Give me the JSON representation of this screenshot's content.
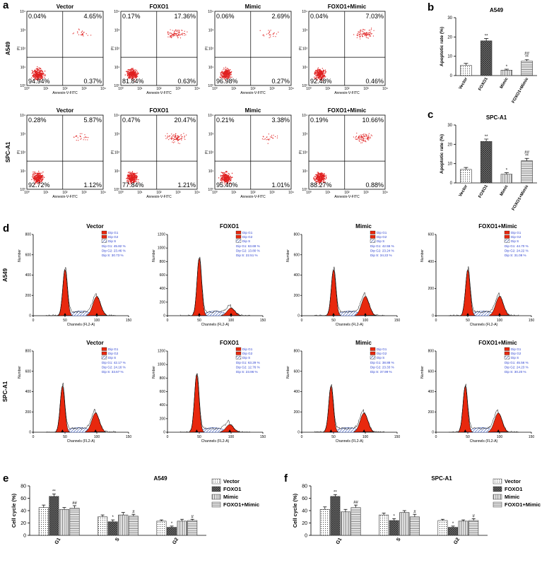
{
  "panel_a": {
    "label": "a",
    "row_labels": [
      "A549",
      "SPC-A1"
    ],
    "column_titles": [
      "Vector",
      "FOXO1",
      "Mimic",
      "FOXO1+Mimic"
    ],
    "x_axis_label": "Annexin-V-FITC",
    "y_axis_label": "PI",
    "ticks": [
      "10⁰",
      "10¹",
      "10²",
      "10³",
      "10⁴"
    ],
    "plots": [
      [
        [
          "0.04%",
          "4.65%",
          "94.94%",
          "0.37%"
        ],
        [
          "0.17%",
          "17.36%",
          "81.84%",
          "0.63%"
        ],
        [
          "0.06%",
          "2.69%",
          "96.98%",
          "0.27%"
        ],
        [
          "0.04%",
          "7.03%",
          "92.48%",
          "0.46%"
        ]
      ],
      [
        [
          "0.28%",
          "5.87%",
          "92.72%",
          "1.12%"
        ],
        [
          "0.47%",
          "20.47%",
          "77.84%",
          "1.21%"
        ],
        [
          "0.21%",
          "3.38%",
          "95.40%",
          "1.01%"
        ],
        [
          "0.19%",
          "10.66%",
          "88.27%",
          "0.88%"
        ]
      ]
    ]
  },
  "panel_b": {
    "label": "b",
    "type": "bar",
    "title": "A549",
    "y_label": "Apoptotic rate (%)",
    "categories": [
      "Vector",
      "FOXO1",
      "Mimic",
      "FOXO1+Mimic"
    ],
    "values": [
      5.3,
      18,
      2.8,
      7.5
    ],
    "errors": [
      1,
      1.2,
      0.5,
      0.8
    ],
    "ylim": [
      0,
      30
    ],
    "yticks": [
      0,
      10,
      20,
      30
    ],
    "sig_vs_vector": [
      null,
      "**",
      "*",
      "**"
    ],
    "sig_vs_foxo1": [
      null,
      null,
      null,
      "##"
    ]
  },
  "panel_c": {
    "label": "c",
    "type": "bar",
    "title": "SPC-A1",
    "y_label": "Apoptotic rate (%)",
    "categories": [
      "Vector",
      "FOXO1",
      "Mimic",
      "FOXO1+Mimic"
    ],
    "values": [
      7,
      21.5,
      4.5,
      11.5
    ],
    "errors": [
      1,
      1.2,
      0.8,
      1.2
    ],
    "ylim": [
      0,
      30
    ],
    "yticks": [
      0,
      10,
      20,
      30
    ],
    "sig_vs_vector": [
      null,
      "**",
      "*",
      "**"
    ],
    "sig_vs_foxo1": [
      null,
      null,
      null,
      "##"
    ]
  },
  "panel_d": {
    "label": "d",
    "row_labels": [
      "A549",
      "SPC-A1"
    ],
    "column_titles": [
      "Vector",
      "FOXO1",
      "Mimic",
      "FOXO1+Mimic"
    ],
    "x_axis_label": "Channels (FL2-A)",
    "y_axis_label": "Number",
    "xlim": [
      0,
      150
    ],
    "xticks": [
      0,
      50,
      100,
      150
    ],
    "legend": [
      "Dip G1",
      "Dip G2",
      "Dip S"
    ],
    "plots": [
      [
        {
          "yticks": [
            0,
            200,
            400,
            600,
            800
          ],
          "stats": [
            "Dip G1: 45.82 %",
            "Dip G2: 23.46 %",
            "Dip S: 30.73 %"
          ]
        },
        {
          "yticks": [
            0,
            200,
            400,
            600,
            800,
            1000,
            1200
          ],
          "stats": [
            "Dip G1: 63.69 %",
            "Dip G2: 13.80 %",
            "Dip S: 22.51 %"
          ]
        },
        {
          "yticks": [
            0,
            200,
            400,
            600,
            800
          ],
          "stats": [
            "Dip G1: 42.55 %",
            "Dip G2: 23.24 %",
            "Dip S: 34.22 %"
          ]
        },
        {
          "yticks": [
            0,
            200,
            400,
            600
          ],
          "stats": [
            "Dip G1: 44.70 %",
            "Dip G2: 24.22 %",
            "Dip S: 31.08 %"
          ]
        }
      ],
      [
        {
          "yticks": [
            0,
            200,
            400,
            600,
            800
          ],
          "stats": [
            "Dip G1: 42.17 %",
            "Dip G2: 24.16 %",
            "Dip S: 33.67 %"
          ]
        },
        {
          "yticks": [
            0,
            200,
            400,
            600,
            800,
            1000,
            1200
          ],
          "stats": [
            "Dip G1: 63.29 %",
            "Dip G2: 12.76 %",
            "Dip S: 23.96 %"
          ]
        },
        {
          "yticks": [
            0,
            200,
            400,
            600,
            800
          ],
          "stats": [
            "Dip G1: 38.88 %",
            "Dip G2: 23.33 %",
            "Dip S: 37.99 %"
          ]
        },
        {
          "yticks": [
            0,
            200,
            400,
            600,
            800
          ],
          "stats": [
            "Dip G1: 45.56 %",
            "Dip G2: 24.23 %",
            "Dip S: 30.20 %"
          ]
        }
      ]
    ]
  },
  "panel_e": {
    "label": "e",
    "type": "grouped_bar",
    "title": "A549",
    "y_label": "Cell cycle (%)",
    "categories": [
      "G1",
      "S",
      "G2"
    ],
    "ylim": [
      0,
      80
    ],
    "yticks": [
      0,
      20,
      40,
      60,
      80
    ],
    "series": [
      {
        "name": "Vector",
        "pattern": "dots",
        "values": [
          45,
          30,
          23
        ],
        "errors": [
          4,
          3,
          2
        ],
        "sig": [
          null,
          null,
          null
        ]
      },
      {
        "name": "FOXO1",
        "pattern": "crosshatch",
        "values": [
          63,
          22,
          13
        ],
        "errors": [
          4,
          3,
          2
        ],
        "sig": [
          "**",
          "*",
          "*"
        ]
      },
      {
        "name": "Mimic",
        "pattern": "vlines",
        "values": [
          42,
          33,
          23
        ],
        "errors": [
          3,
          4,
          3
        ],
        "sig": [
          null,
          null,
          null
        ]
      },
      {
        "name": "FOXO1+Mimic",
        "pattern": "hlines",
        "values": [
          44,
          31,
          24
        ],
        "errors": [
          4,
          3,
          2
        ],
        "sig": [
          "##",
          "#",
          "#"
        ]
      }
    ]
  },
  "panel_f": {
    "label": "f",
    "type": "grouped_bar",
    "title": "SPC-A1",
    "y_label": "Cell cycle (%)",
    "categories": [
      "G1",
      "S",
      "G2"
    ],
    "ylim": [
      0,
      80
    ],
    "yticks": [
      0,
      20,
      40,
      60,
      80
    ],
    "series": [
      {
        "name": "Vector",
        "pattern": "dots",
        "values": [
          42,
          33,
          24
        ],
        "errors": [
          4,
          3,
          2
        ],
        "sig": [
          null,
          null,
          null
        ]
      },
      {
        "name": "FOXO1",
        "pattern": "crosshatch",
        "values": [
          63,
          24,
          13
        ],
        "errors": [
          3,
          3,
          2
        ],
        "sig": [
          "**",
          "*",
          "*"
        ]
      },
      {
        "name": "Mimic",
        "pattern": "vlines",
        "values": [
          38,
          37,
          23
        ],
        "errors": [
          4,
          3,
          2
        ],
        "sig": [
          null,
          null,
          null
        ]
      },
      {
        "name": "FOXO1+Mimic",
        "pattern": "hlines",
        "values": [
          45,
          30,
          24
        ],
        "errors": [
          4,
          4,
          3
        ],
        "sig": [
          "##",
          "#",
          "#"
        ]
      }
    ]
  }
}
